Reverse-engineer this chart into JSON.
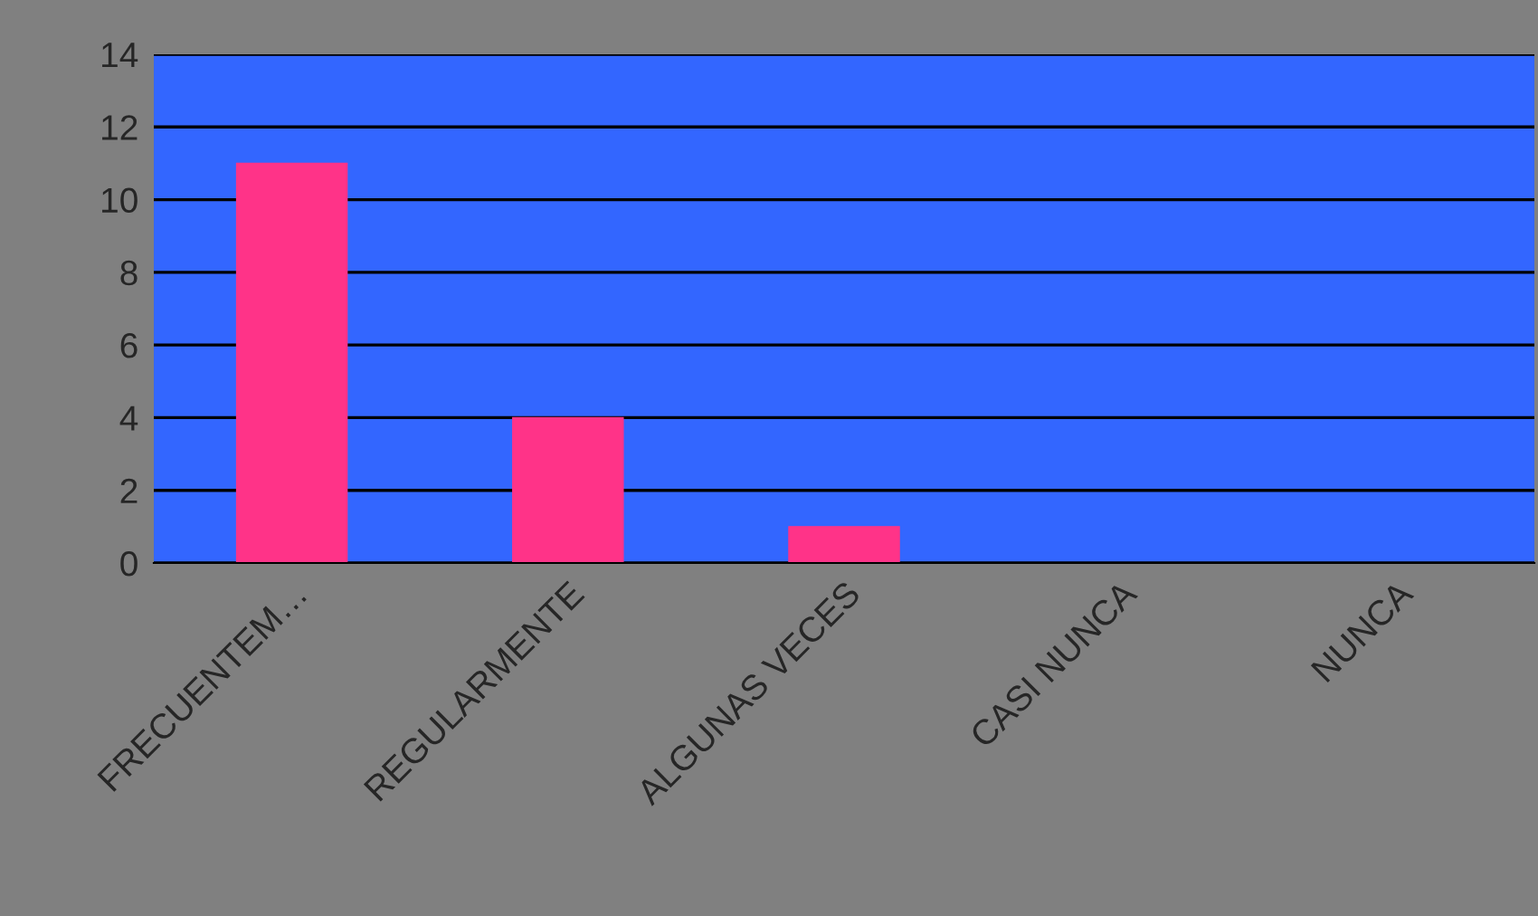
{
  "chart_data": {
    "type": "bar",
    "categories": [
      "FRECUENTEM…",
      "REGULARMENTE",
      "ALGUNAS VECES",
      "CASI NUNCA",
      "NUNCA"
    ],
    "values": [
      11,
      4,
      1,
      0,
      0
    ],
    "color": "#ff3388",
    "ylim": [
      0,
      14
    ],
    "yticks": [
      0,
      2,
      4,
      6,
      8,
      10,
      12,
      14
    ],
    "grid": "y",
    "legend": false
  }
}
